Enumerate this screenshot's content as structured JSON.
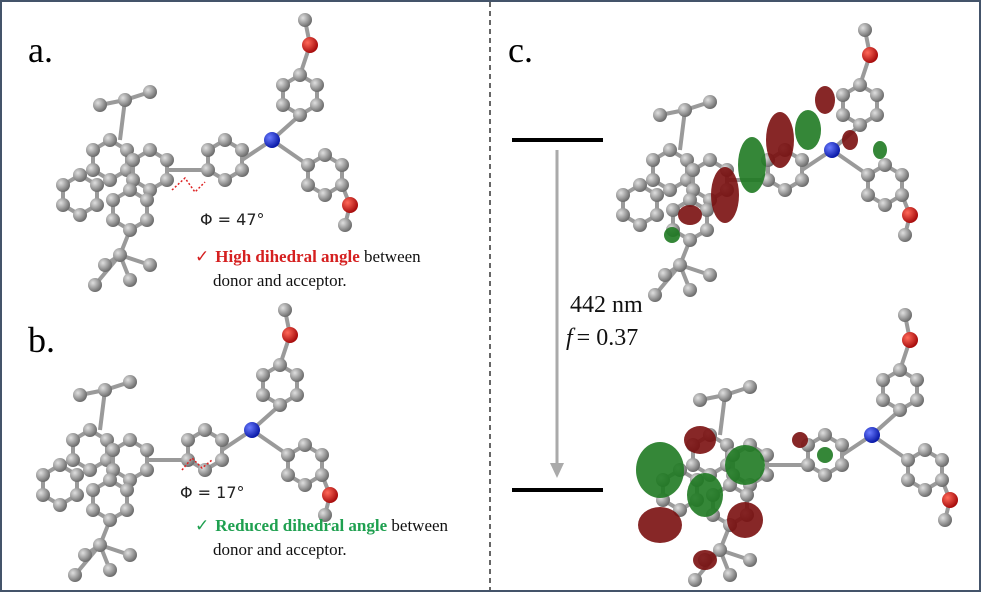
{
  "panels": [
    {
      "label": "a.",
      "angle": "Φ = 47°",
      "check": "✓",
      "highlight": "High dihedral angle",
      "text": " between",
      "text2": "donor and acceptor."
    },
    {
      "label": "b.",
      "angle": "Φ = 17°",
      "check": "✓",
      "highlight": "Reduced dihedral angle",
      "text": " between",
      "text2": "donor and acceptor."
    },
    {
      "label": "c."
    }
  ],
  "transition": {
    "wavelength": "442 nm",
    "f_symbol": "f",
    "f_value": "=  0.37"
  }
}
